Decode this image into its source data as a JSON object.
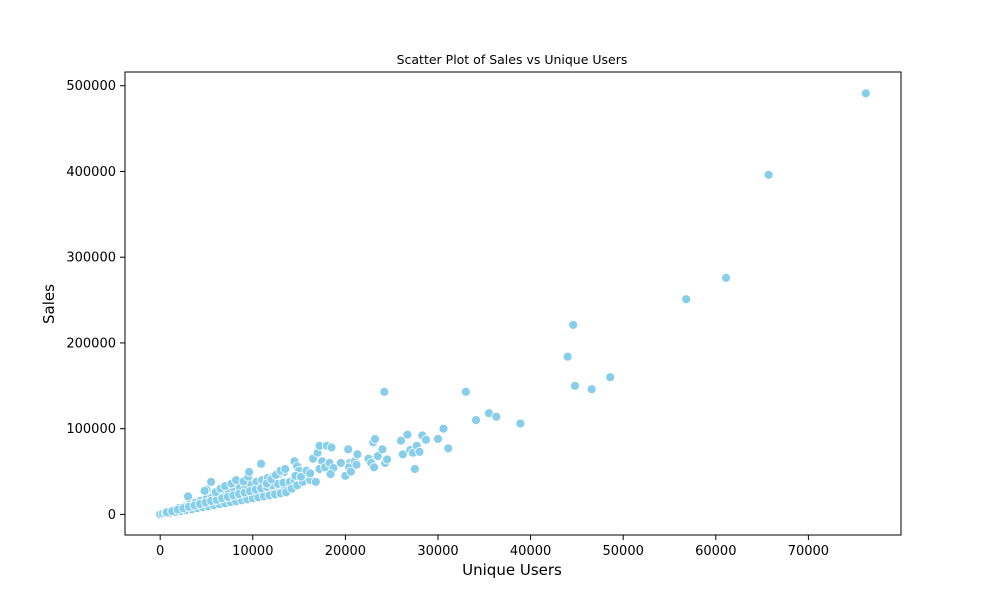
{
  "chart_data": {
    "type": "scatter",
    "title": "Scatter Plot of Sales vs Unique Users",
    "xlabel": "Unique Users",
    "ylabel": "Sales",
    "xlim": [
      -3800,
      80000
    ],
    "ylim": [
      -24000,
      516000
    ],
    "xticks": [
      0,
      10000,
      20000,
      30000,
      40000,
      50000,
      60000,
      70000
    ],
    "yticks": [
      0,
      100000,
      200000,
      300000,
      400000,
      500000
    ],
    "grid": false,
    "legend": "none",
    "point_color": "#87CEEB",
    "point_edge_color": "#ffffff",
    "points": [
      [
        0,
        0
      ],
      [
        300,
        800
      ],
      [
        600,
        1500
      ],
      [
        900,
        2200
      ],
      [
        1200,
        2800
      ],
      [
        1500,
        3500
      ],
      [
        1800,
        4200
      ],
      [
        2100,
        4800
      ],
      [
        2400,
        5600
      ],
      [
        2700,
        6200
      ],
      [
        3000,
        7000
      ],
      [
        3300,
        7800
      ],
      [
        3600,
        8300
      ],
      [
        3900,
        9100
      ],
      [
        4200,
        9800
      ],
      [
        4500,
        10500
      ],
      [
        4800,
        11200
      ],
      [
        5100,
        12000
      ],
      [
        5400,
        12600
      ],
      [
        5700,
        13400
      ],
      [
        6000,
        14000
      ],
      [
        6300,
        14800
      ],
      [
        6600,
        15600
      ],
      [
        6900,
        16200
      ],
      [
        7200,
        17000
      ],
      [
        7500,
        17600
      ],
      [
        7800,
        18400
      ],
      [
        8100,
        19200
      ],
      [
        8400,
        19800
      ],
      [
        8700,
        20600
      ],
      [
        9000,
        21400
      ],
      [
        9300,
        22000
      ],
      [
        9600,
        22800
      ],
      [
        9900,
        23500
      ],
      [
        10200,
        24300
      ],
      [
        10500,
        25000
      ],
      [
        10800,
        25800
      ],
      [
        11100,
        26500
      ],
      [
        11400,
        27300
      ],
      [
        11700,
        28000
      ],
      [
        12000,
        28800
      ],
      [
        12300,
        29500
      ],
      [
        12600,
        30300
      ],
      [
        12900,
        31000
      ],
      [
        13200,
        31800
      ],
      [
        13500,
        32500
      ],
      [
        1000,
        1500
      ],
      [
        1600,
        2600
      ],
      [
        2200,
        3800
      ],
      [
        2800,
        5000
      ],
      [
        3400,
        6100
      ],
      [
        4000,
        7300
      ],
      [
        4600,
        8400
      ],
      [
        5200,
        9600
      ],
      [
        5800,
        10700
      ],
      [
        6400,
        11900
      ],
      [
        7000,
        13000
      ],
      [
        7600,
        14200
      ],
      [
        8200,
        15300
      ],
      [
        8800,
        16500
      ],
      [
        9400,
        17600
      ],
      [
        10000,
        18800
      ],
      [
        10600,
        19900
      ],
      [
        11200,
        21100
      ],
      [
        11800,
        22200
      ],
      [
        12400,
        23400
      ],
      [
        13000,
        24500
      ],
      [
        13600,
        25700
      ],
      [
        1400,
        5000
      ],
      [
        2000,
        7500
      ],
      [
        2600,
        9000
      ],
      [
        3200,
        12000
      ],
      [
        3800,
        13500
      ],
      [
        4400,
        16000
      ],
      [
        5000,
        18500
      ],
      [
        5600,
        20000
      ],
      [
        6200,
        22500
      ],
      [
        6800,
        24500
      ],
      [
        7400,
        27000
      ],
      [
        8000,
        29500
      ],
      [
        8600,
        31000
      ],
      [
        9200,
        33500
      ],
      [
        9800,
        35500
      ],
      [
        10400,
        38000
      ],
      [
        11000,
        40000
      ],
      [
        11600,
        42500
      ],
      [
        12200,
        44500
      ],
      [
        12800,
        47000
      ],
      [
        13400,
        49500
      ],
      [
        700,
        2500
      ],
      [
        1300,
        3800
      ],
      [
        1900,
        5600
      ],
      [
        2500,
        7200
      ],
      [
        3100,
        8900
      ],
      [
        3700,
        10400
      ],
      [
        4300,
        12200
      ],
      [
        4900,
        13800
      ],
      [
        5500,
        15600
      ],
      [
        6100,
        17100
      ],
      [
        6700,
        18900
      ],
      [
        7300,
        20400
      ],
      [
        7900,
        22200
      ],
      [
        8500,
        23800
      ],
      [
        9100,
        25600
      ],
      [
        9700,
        27100
      ],
      [
        10300,
        28900
      ],
      [
        10900,
        30400
      ],
      [
        11500,
        32200
      ],
      [
        12100,
        33800
      ],
      [
        12700,
        35600
      ],
      [
        13300,
        37100
      ],
      [
        14000,
        38000
      ],
      [
        14500,
        40000
      ],
      [
        15000,
        42000
      ],
      [
        15500,
        44000
      ],
      [
        16000,
        46000
      ],
      [
        14200,
        30000
      ],
      [
        14800,
        34000
      ],
      [
        15400,
        38000
      ],
      [
        16200,
        40000
      ],
      [
        16800,
        38000
      ],
      [
        5500,
        38000
      ],
      [
        5000,
        29000
      ],
      [
        4800,
        27500
      ],
      [
        3000,
        21000
      ],
      [
        6000,
        26000
      ],
      [
        6500,
        30000
      ],
      [
        7000,
        33000
      ],
      [
        7700,
        36000
      ],
      [
        8200,
        40000
      ],
      [
        9000,
        38500
      ],
      [
        9500,
        44000
      ],
      [
        9600,
        49500
      ],
      [
        10900,
        59000
      ],
      [
        11500,
        36000
      ],
      [
        12000,
        41000
      ],
      [
        12500,
        46000
      ],
      [
        13000,
        51000
      ],
      [
        13500,
        53000
      ],
      [
        14500,
        62000
      ],
      [
        14800,
        56000
      ],
      [
        15000,
        51000
      ],
      [
        14600,
        45000
      ],
      [
        15200,
        44000
      ],
      [
        15800,
        51000
      ],
      [
        16200,
        48000
      ],
      [
        16500,
        65000
      ],
      [
        17000,
        72000
      ],
      [
        17200,
        80000
      ],
      [
        17500,
        62000
      ],
      [
        17200,
        53000
      ],
      [
        17800,
        55000
      ],
      [
        18000,
        80000
      ],
      [
        18300,
        60000
      ],
      [
        18500,
        78000
      ],
      [
        18700,
        54000
      ],
      [
        18400,
        47000
      ],
      [
        19500,
        60000
      ],
      [
        20000,
        45000
      ],
      [
        20300,
        76000
      ],
      [
        20500,
        60000
      ],
      [
        20400,
        55000
      ],
      [
        20600,
        50000
      ],
      [
        21000,
        62000
      ],
      [
        21300,
        70000
      ],
      [
        21200,
        58000
      ],
      [
        22500,
        65000
      ],
      [
        22800,
        60000
      ],
      [
        23000,
        84000
      ],
      [
        23200,
        88000
      ],
      [
        23100,
        55000
      ],
      [
        23500,
        68000
      ],
      [
        24000,
        76000
      ],
      [
        24300,
        60000
      ],
      [
        24500,
        64000
      ],
      [
        24200,
        143000
      ],
      [
        26000,
        86000
      ],
      [
        26200,
        70000
      ],
      [
        26700,
        93000
      ],
      [
        27000,
        75000
      ],
      [
        27300,
        72000
      ],
      [
        27500,
        53000
      ],
      [
        27700,
        80000
      ],
      [
        28000,
        73000
      ],
      [
        28300,
        92000
      ],
      [
        28700,
        87000
      ],
      [
        30000,
        88000
      ],
      [
        30600,
        100000
      ],
      [
        31100,
        77000
      ],
      [
        33000,
        143000
      ],
      [
        34100,
        110000
      ],
      [
        35500,
        118000
      ],
      [
        36300,
        114000
      ],
      [
        38900,
        106000
      ],
      [
        44000,
        184000
      ],
      [
        44600,
        221000
      ],
      [
        44800,
        150000
      ],
      [
        46600,
        146000
      ],
      [
        48600,
        160000
      ],
      [
        56800,
        251000
      ],
      [
        61100,
        276000
      ],
      [
        65700,
        396000
      ],
      [
        76200,
        491000
      ]
    ]
  }
}
